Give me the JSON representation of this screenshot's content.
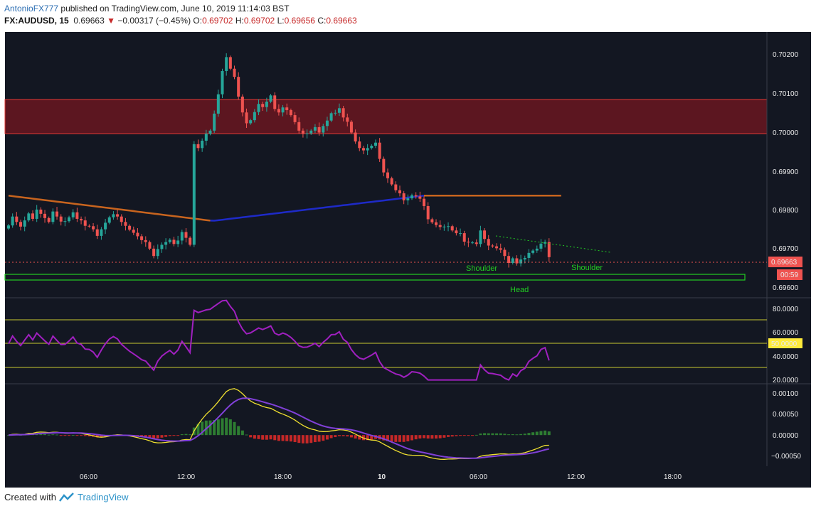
{
  "header": {
    "author": "AntonioFX777",
    "published": "published on TradingView.com, June 10, 2019 11:14:03 BST",
    "symbol": "FX:AUDUSD, 15",
    "last": "0.69663",
    "arrow": "▼",
    "change": "−0.00317 (−0.45%)",
    "o_label": "O:",
    "o_value": "0.69702",
    "h_label": "H:",
    "h_value": "0.69702",
    "l_label": "L:",
    "l_value": "0.69656",
    "c_label": "C:",
    "c_value": "0.69663"
  },
  "footer": {
    "created": "Created with",
    "brand": "TradingView"
  },
  "colors": {
    "background": "#131722",
    "up": "#26a69a",
    "down": "#ef5350",
    "resistance_zone": "#5c1620",
    "support_zone": "#22cc22",
    "rsi": "#a020c0",
    "ma": "#c8641e",
    "ma_blue": "#1e2ac8",
    "macd": "#f0e030",
    "signal": "#8040d8"
  },
  "chart_data": [
    {
      "type": "candlestick",
      "panel": "price",
      "symbol": "FX:AUDUSD",
      "timeframe": "15",
      "x_ticks": [
        "06:00",
        "12:00",
        "18:00",
        "10",
        "06:00",
        "12:00",
        "18:00"
      ],
      "y_ticks": [
        "0.70200",
        "0.70100",
        "0.70000",
        "0.69900",
        "0.69800",
        "0.69700",
        "0.69600"
      ],
      "ylim": [
        0.69558,
        0.70245
      ],
      "current_price": "0.69663",
      "countdown": "00:59",
      "resistance_zone": [
        0.69992,
        0.70082
      ],
      "support_zone": [
        0.69624,
        0.69638
      ],
      "annotations": [
        "Shoulder",
        "Shoulder",
        "Head"
      ],
      "close": [
        0.69745,
        0.69768,
        0.69754,
        0.69742,
        0.69758,
        0.69776,
        0.69762,
        0.69786,
        0.69775,
        0.69764,
        0.69754,
        0.69781,
        0.69768,
        0.69755,
        0.69756,
        0.69766,
        0.69779,
        0.69762,
        0.69758,
        0.69744,
        0.69743,
        0.69735,
        0.69718,
        0.69735,
        0.69752,
        0.69766,
        0.69774,
        0.69768,
        0.69754,
        0.69744,
        0.69734,
        0.69726,
        0.69717,
        0.69707,
        0.69702,
        0.69685,
        0.69666,
        0.69684,
        0.69695,
        0.69702,
        0.69708,
        0.69697,
        0.69706,
        0.69728,
        0.69713,
        0.69695,
        0.69955,
        0.69945,
        0.69964,
        0.69982,
        0.6999,
        0.70034,
        0.70084,
        0.70144,
        0.7018,
        0.7015,
        0.70129,
        0.70078,
        0.70037,
        0.70009,
        0.70017,
        0.70038,
        0.70059,
        0.70051,
        0.70065,
        0.70081,
        0.70046,
        0.70037,
        0.7005,
        0.70043,
        0.7003,
        0.70012,
        0.6999,
        0.69982,
        0.69983,
        0.6999,
        0.69999,
        0.69985,
        0.70002,
        0.70016,
        0.70035,
        0.70036,
        0.70048,
        0.70024,
        0.70013,
        0.69985,
        0.69962,
        0.69945,
        0.69939,
        0.69945,
        0.69951,
        0.69959,
        0.69917,
        0.69882,
        0.69867,
        0.69851,
        0.69836,
        0.69828,
        0.6981,
        0.69815,
        0.69823,
        0.6982,
        0.69814,
        0.69795,
        0.69761,
        0.69753,
        0.69746,
        0.69741,
        0.69742,
        0.69743,
        0.69732,
        0.69725,
        0.69725,
        0.69703,
        0.69701,
        0.69701,
        0.69697,
        0.69732,
        0.6971,
        0.69693,
        0.69691,
        0.69686,
        0.69682,
        0.69666,
        0.69648,
        0.6966,
        0.69647,
        0.69657,
        0.69661,
        0.69674,
        0.6968,
        0.69685,
        0.69698,
        0.69702,
        0.69663
      ]
    },
    {
      "type": "line",
      "panel": "rsi",
      "y_ticks": [
        "80.0000",
        "60.0000",
        "40.0000",
        "20.0000"
      ],
      "ylim": [
        18,
        87
      ],
      "current_value": "50.0000",
      "levels": [
        70,
        50,
        30
      ]
    },
    {
      "type": "line",
      "panel": "macd",
      "y_ticks": [
        "0.00100",
        "0.00050",
        "0.00000",
        "−0.00050"
      ],
      "ylim": [
        -0.00072,
        0.00118
      ]
    }
  ]
}
